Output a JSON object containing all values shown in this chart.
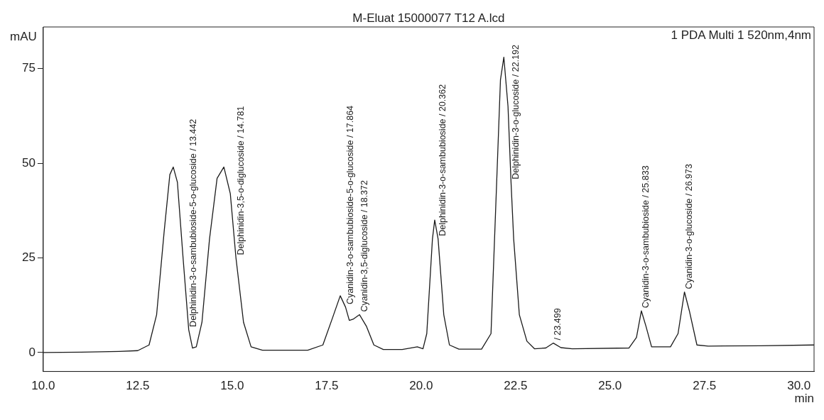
{
  "chart_data": {
    "type": "line",
    "title": "M-Eluat 15000077 T12 A.lcd",
    "xlabel": "min",
    "ylabel": "mAU",
    "x": [
      10.0,
      11.0,
      12.0,
      12.5,
      12.8,
      13.0,
      13.2,
      13.35,
      13.44,
      13.55,
      13.7,
      13.85,
      13.95,
      14.05,
      14.2,
      14.4,
      14.6,
      14.78,
      14.95,
      15.1,
      15.3,
      15.5,
      15.8,
      17.0,
      17.4,
      17.65,
      17.86,
      18.0,
      18.1,
      18.2,
      18.37,
      18.55,
      18.75,
      19.0,
      19.5,
      19.9,
      20.05,
      20.15,
      20.3,
      20.36,
      20.45,
      20.6,
      20.75,
      21.0,
      21.6,
      21.85,
      22.0,
      22.1,
      22.19,
      22.3,
      22.38,
      22.45,
      22.6,
      22.8,
      23.0,
      23.3,
      23.5,
      23.7,
      24.0,
      25.5,
      25.7,
      25.83,
      25.95,
      26.1,
      26.6,
      26.8,
      26.97,
      27.1,
      27.3,
      27.6,
      29.0,
      30.4
    ],
    "series": [
      {
        "color": "#1a1a1a",
        "values": [
          0.0,
          0.1,
          0.3,
          0.5,
          2,
          10,
          32,
          47,
          49,
          45,
          25,
          6,
          1.2,
          1.5,
          8,
          30,
          46,
          49,
          42,
          25,
          8,
          1.5,
          0.6,
          0.6,
          2,
          9,
          15,
          12,
          8.5,
          8.8,
          10,
          7,
          2,
          0.8,
          0.8,
          1.5,
          1.0,
          5,
          30,
          35,
          30,
          10,
          2,
          0.9,
          0.9,
          5,
          45,
          72,
          78,
          65,
          45,
          30,
          10,
          3,
          1,
          1.2,
          2.5,
          1.3,
          1,
          1.2,
          4,
          11,
          7,
          1.5,
          1.5,
          5,
          16,
          11,
          2,
          1.7,
          1.8,
          2
        ]
      }
    ],
    "xlim": [
      10,
      30.4
    ],
    "ylim": [
      -5,
      86
    ],
    "xticks": [
      {
        "value": 10,
        "label": "10.0"
      },
      12.5,
      {
        "value": 15,
        "label": "15.0"
      },
      17.5,
      {
        "value": 20,
        "label": "20.0"
      },
      22.5,
      {
        "value": 25,
        "label": "25.0"
      },
      27.5,
      {
        "value": 30,
        "label": "30.0"
      }
    ],
    "yticks": [
      0,
      25,
      50,
      75
    ],
    "grid": false,
    "legend": false,
    "marker": "none",
    "line_style": "solid",
    "annotations": [
      "1 PDA Multi 1 520nm,4nm",
      {
        "text": "Delphinidin-3-o-sambubioside-5-o-glucoside / 13.442",
        "x": 13.85,
        "y": 6
      },
      {
        "text": "Delphinidin-3,5-o-diglucoside / 14.781",
        "x": 15.1,
        "y": 25
      },
      {
        "text": "Cyanidin-3-o-sambubioside-5-o-glucoside / 17.864",
        "x": 18.0,
        "y": 12
      },
      {
        "text": "Cyanidin-3,5-diglucoside / 18.372",
        "x": 18.37,
        "y": 10
      },
      {
        "text": "Delphinidin-3-o-sambubioside / 20.362",
        "x": 20.45,
        "y": 30
      },
      {
        "text": "Delphinidin-3-o-glucoside / 22.192",
        "x": 22.38,
        "y": 45
      },
      {
        "text": "/ 23.499",
        "x": 23.5,
        "y": 2.5
      },
      {
        "text": "Cyanidin-3-o-sambubioside / 25.833",
        "x": 25.83,
        "y": 11
      },
      {
        "text": "Cyanidin-3-o-glucoside / 26.973",
        "x": 26.97,
        "y": 16
      }
    ]
  }
}
